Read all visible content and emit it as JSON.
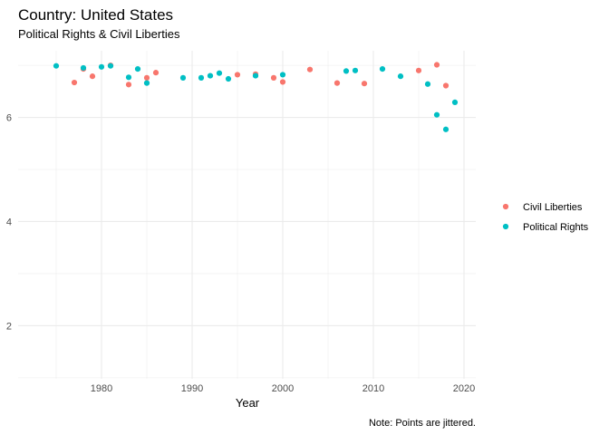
{
  "chart_data": {
    "type": "scatter",
    "title": "Country: United States",
    "subtitle": "Political Rights & Civil Liberties",
    "xlabel": "Year",
    "ylabel": "",
    "caption": "Note: Points are jittered.",
    "xlim": [
      1970.8,
      2021.3
    ],
    "ylim": [
      0.98,
      7.28
    ],
    "x_ticks": [
      1980,
      1990,
      2000,
      2010,
      2020
    ],
    "y_ticks": [
      2,
      4,
      6
    ],
    "grid": true,
    "legend_position": "right",
    "series": [
      {
        "name": "Civil Liberties",
        "color": "#F8766D",
        "points": [
          {
            "x": 1977,
            "y": 6.67
          },
          {
            "x": 1978,
            "y": 6.93
          },
          {
            "x": 1979,
            "y": 6.79
          },
          {
            "x": 1981,
            "y": 7.0
          },
          {
            "x": 1983,
            "y": 6.63
          },
          {
            "x": 1985,
            "y": 6.76
          },
          {
            "x": 1986,
            "y": 6.86
          },
          {
            "x": 1995,
            "y": 6.82
          },
          {
            "x": 1997,
            "y": 6.83
          },
          {
            "x": 1999,
            "y": 6.76
          },
          {
            "x": 2000,
            "y": 6.68
          },
          {
            "x": 2003,
            "y": 6.92
          },
          {
            "x": 2006,
            "y": 6.66
          },
          {
            "x": 2009,
            "y": 6.65
          },
          {
            "x": 2015,
            "y": 6.9
          },
          {
            "x": 2017,
            "y": 7.01
          },
          {
            "x": 2018,
            "y": 6.61
          }
        ]
      },
      {
        "name": "Political Rights",
        "color": "#00BFC4",
        "points": [
          {
            "x": 1975,
            "y": 6.99
          },
          {
            "x": 1978,
            "y": 6.95
          },
          {
            "x": 1980,
            "y": 6.97
          },
          {
            "x": 1981,
            "y": 6.99
          },
          {
            "x": 1983,
            "y": 6.77
          },
          {
            "x": 1984,
            "y": 6.93
          },
          {
            "x": 1985,
            "y": 6.66
          },
          {
            "x": 1989,
            "y": 6.76
          },
          {
            "x": 1991,
            "y": 6.76
          },
          {
            "x": 1992,
            "y": 6.8
          },
          {
            "x": 1993,
            "y": 6.85
          },
          {
            "x": 1994,
            "y": 6.74
          },
          {
            "x": 1997,
            "y": 6.8
          },
          {
            "x": 2000,
            "y": 6.82
          },
          {
            "x": 2007,
            "y": 6.89
          },
          {
            "x": 2008,
            "y": 6.9
          },
          {
            "x": 2011,
            "y": 6.93
          },
          {
            "x": 2013,
            "y": 6.79
          },
          {
            "x": 2016,
            "y": 6.64
          },
          {
            "x": 2017,
            "y": 6.05
          },
          {
            "x": 2018,
            "y": 5.77
          },
          {
            "x": 2019,
            "y": 6.29
          }
        ]
      }
    ]
  }
}
